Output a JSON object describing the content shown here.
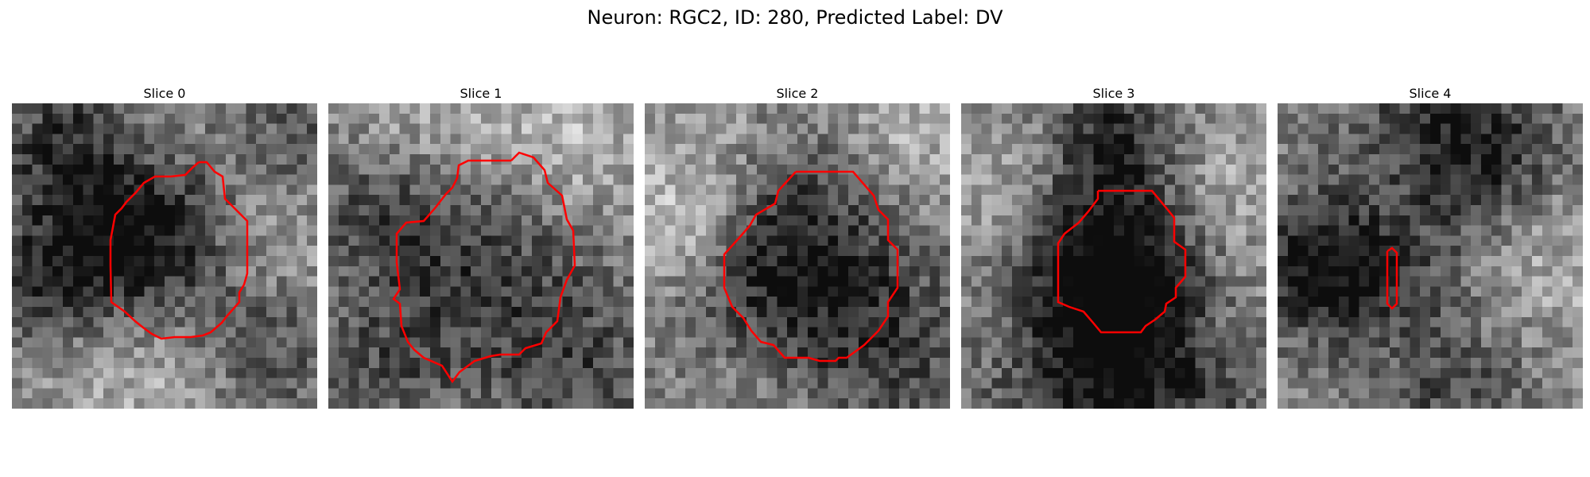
{
  "figure": {
    "title": "Neuron: RGC2, ID: 280, Predicted Label: DV"
  },
  "slices": [
    {
      "label": "Slice 0"
    },
    {
      "label": "Slice 1"
    },
    {
      "label": "Slice 2"
    },
    {
      "label": "Slice 3"
    },
    {
      "label": "Slice 4"
    }
  ],
  "colors": {
    "contour": "#ff0000",
    "background": "#ffffff"
  }
}
